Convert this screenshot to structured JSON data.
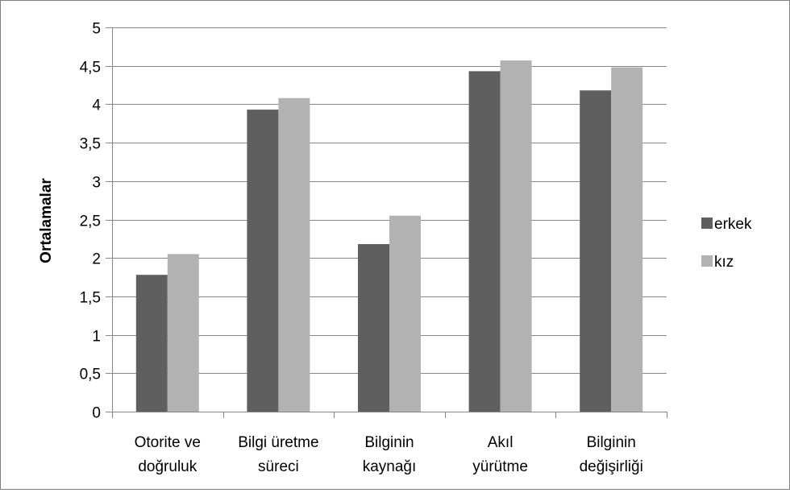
{
  "chart_data": {
    "type": "bar",
    "title": "",
    "xlabel": "",
    "ylabel": "Ortalamalar",
    "ylim": [
      0,
      5
    ],
    "yticks": [
      "0",
      "0,5",
      "1",
      "1,5",
      "2",
      "2,5",
      "3",
      "3,5",
      "4",
      "4,5",
      "5"
    ],
    "ytick_values": [
      0,
      0.5,
      1,
      1.5,
      2,
      2.5,
      3,
      3.5,
      4,
      4.5,
      5
    ],
    "grid": true,
    "legend_position": "right",
    "categories": [
      [
        "Otorite ve",
        "doğruluk"
      ],
      [
        "Bilgi üretme",
        "süreci"
      ],
      [
        "Bilginin",
        "kaynağı"
      ],
      [
        "Akıl",
        "yürütme"
      ],
      [
        "Bilginin",
        "değişirliği"
      ]
    ],
    "series": [
      {
        "name": "erkek",
        "color": "#5f5f5f",
        "values": [
          1.78,
          3.93,
          2.18,
          4.43,
          4.18
        ]
      },
      {
        "name": "kız",
        "color": "#b2b2b2",
        "values": [
          2.05,
          4.08,
          2.55,
          4.57,
          4.48
        ]
      }
    ]
  }
}
